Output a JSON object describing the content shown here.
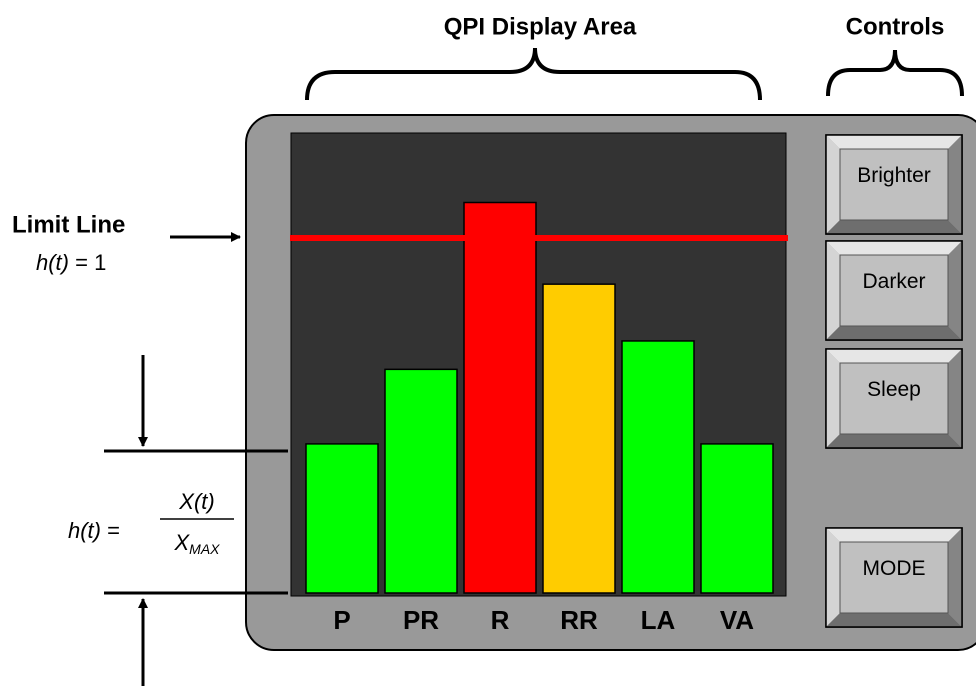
{
  "header": {
    "display_title": "QPI Display Area",
    "controls_title": "Controls"
  },
  "limit": {
    "label": "Limit Line",
    "lhs": "h(t)",
    "eq": " = ",
    "value": 1,
    "color": "#ff0000"
  },
  "formula": {
    "lhs": "h(t)",
    "eq": " = ",
    "numerator": "X(t)",
    "denominator": "X",
    "denominator_sub": "MAX"
  },
  "bars": [
    {
      "label": "P",
      "value": 0.42,
      "color": "#00ff00"
    },
    {
      "label": "PR",
      "value": 0.63,
      "color": "#00ff00"
    },
    {
      "label": "R",
      "value": 1.1,
      "color": "#ff0000"
    },
    {
      "label": "RR",
      "value": 0.87,
      "color": "#ffcc00"
    },
    {
      "label": "LA",
      "value": 0.71,
      "color": "#00ff00"
    },
    {
      "label": "VA",
      "value": 0.42,
      "color": "#00ff00"
    }
  ],
  "buttons": [
    "Brighter",
    "Darker",
    "Sleep",
    "MODE"
  ]
}
